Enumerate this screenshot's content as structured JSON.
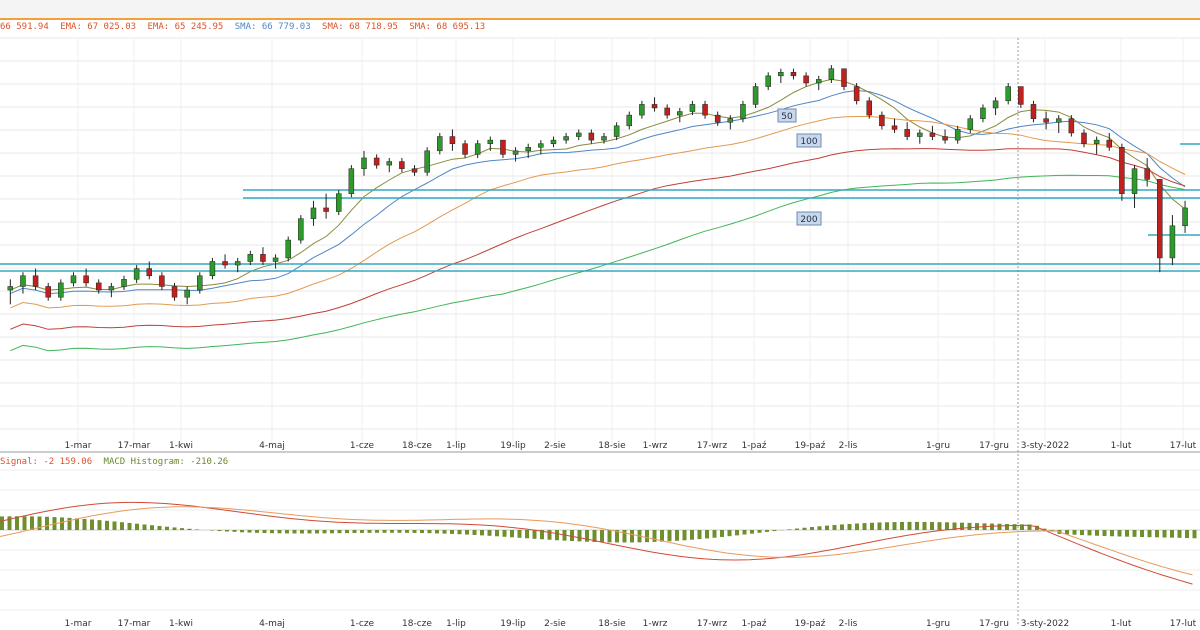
{
  "chart_data": [
    {
      "type": "candlestick",
      "title": "",
      "ylabel": "",
      "xlabel": "",
      "indicators_text": [
        {
          "id": "ema1",
          "text": "66 591.94",
          "color": "#d9532c"
        },
        {
          "id": "ema2",
          "text": "EMA: 67 025.03",
          "color": "#d9532c"
        },
        {
          "id": "ema3",
          "text": "EMA: 65 245.95",
          "color": "#d9532c"
        },
        {
          "id": "sma1",
          "text": "SMA: 66 779.03",
          "color": "#4f86c6"
        },
        {
          "id": "sma2",
          "text": "SMA: 68 718.95",
          "color": "#d9532c"
        },
        {
          "id": "sma3",
          "text": "SMA: 68 695.13",
          "color": "#d9532c"
        }
      ],
      "x_tick_labels": [
        "1-mar",
        "17-mar",
        "1-kwi",
        "4-maj",
        "1-cze",
        "18-cze",
        "1-lip",
        "19-lip",
        "2-sie",
        "18-sie",
        "1-wrz",
        "17-wrz",
        "1-paź",
        "19-paź",
        "2-lis",
        "1-gru",
        "17-gru",
        "3-sty-2022",
        "1-lut",
        "17-lut"
      ],
      "ma_labels": [
        "50",
        "100",
        "200"
      ],
      "grid": true,
      "horizontal_levels_note": "cyan support/resistance lines",
      "colors": {
        "up": "#2e9a2e",
        "down": "#c0201e",
        "line50": "#4f86c6",
        "line100": "#e29a50",
        "line200": "#3fb557",
        "lineRed": "#c0403a",
        "lineOlive": "#8a8a3c",
        "hline": "#36a7c0"
      },
      "candles_ohlc_relative": [
        [
          0.35,
          0.38,
          0.31,
          0.36
        ],
        [
          0.36,
          0.4,
          0.34,
          0.39
        ],
        [
          0.39,
          0.41,
          0.35,
          0.36
        ],
        [
          0.36,
          0.37,
          0.32,
          0.33
        ],
        [
          0.33,
          0.38,
          0.32,
          0.37
        ],
        [
          0.37,
          0.4,
          0.36,
          0.39
        ],
        [
          0.39,
          0.41,
          0.36,
          0.37
        ],
        [
          0.37,
          0.38,
          0.34,
          0.35
        ],
        [
          0.35,
          0.37,
          0.33,
          0.36
        ],
        [
          0.36,
          0.39,
          0.35,
          0.38
        ],
        [
          0.38,
          0.42,
          0.37,
          0.41
        ],
        [
          0.41,
          0.43,
          0.38,
          0.39
        ],
        [
          0.39,
          0.4,
          0.35,
          0.36
        ],
        [
          0.36,
          0.37,
          0.32,
          0.33
        ],
        [
          0.33,
          0.36,
          0.31,
          0.35
        ],
        [
          0.35,
          0.4,
          0.34,
          0.39
        ],
        [
          0.39,
          0.44,
          0.38,
          0.43
        ],
        [
          0.43,
          0.45,
          0.41,
          0.42
        ],
        [
          0.42,
          0.44,
          0.4,
          0.43
        ],
        [
          0.43,
          0.46,
          0.42,
          0.45
        ],
        [
          0.45,
          0.47,
          0.42,
          0.43
        ],
        [
          0.43,
          0.45,
          0.41,
          0.44
        ],
        [
          0.44,
          0.5,
          0.43,
          0.49
        ],
        [
          0.49,
          0.56,
          0.48,
          0.55
        ],
        [
          0.55,
          0.6,
          0.53,
          0.58
        ],
        [
          0.58,
          0.62,
          0.55,
          0.57
        ],
        [
          0.57,
          0.63,
          0.56,
          0.62
        ],
        [
          0.62,
          0.7,
          0.61,
          0.69
        ],
        [
          0.69,
          0.74,
          0.67,
          0.72
        ],
        [
          0.72,
          0.73,
          0.69,
          0.7
        ],
        [
          0.7,
          0.72,
          0.68,
          0.71
        ],
        [
          0.71,
          0.72,
          0.68,
          0.69
        ],
        [
          0.69,
          0.7,
          0.67,
          0.68
        ],
        [
          0.68,
          0.75,
          0.67,
          0.74
        ],
        [
          0.74,
          0.79,
          0.73,
          0.78
        ],
        [
          0.78,
          0.8,
          0.74,
          0.76
        ],
        [
          0.76,
          0.77,
          0.72,
          0.73
        ],
        [
          0.73,
          0.77,
          0.72,
          0.76
        ],
        [
          0.76,
          0.78,
          0.74,
          0.77
        ],
        [
          0.77,
          0.76,
          0.72,
          0.73
        ],
        [
          0.73,
          0.75,
          0.71,
          0.74
        ],
        [
          0.74,
          0.76,
          0.72,
          0.75
        ],
        [
          0.75,
          0.77,
          0.73,
          0.76
        ],
        [
          0.76,
          0.78,
          0.75,
          0.77
        ],
        [
          0.77,
          0.79,
          0.76,
          0.78
        ],
        [
          0.78,
          0.8,
          0.77,
          0.79
        ],
        [
          0.79,
          0.8,
          0.76,
          0.77
        ],
        [
          0.77,
          0.79,
          0.76,
          0.78
        ],
        [
          0.78,
          0.82,
          0.77,
          0.81
        ],
        [
          0.81,
          0.85,
          0.8,
          0.84
        ],
        [
          0.84,
          0.88,
          0.83,
          0.87
        ],
        [
          0.87,
          0.89,
          0.85,
          0.86
        ],
        [
          0.86,
          0.87,
          0.83,
          0.84
        ],
        [
          0.84,
          0.86,
          0.82,
          0.85
        ],
        [
          0.85,
          0.88,
          0.84,
          0.87
        ],
        [
          0.87,
          0.88,
          0.83,
          0.84
        ],
        [
          0.84,
          0.85,
          0.81,
          0.82
        ],
        [
          0.82,
          0.84,
          0.8,
          0.83
        ],
        [
          0.83,
          0.88,
          0.82,
          0.87
        ],
        [
          0.87,
          0.93,
          0.86,
          0.92
        ],
        [
          0.92,
          0.96,
          0.91,
          0.95
        ],
        [
          0.95,
          0.97,
          0.93,
          0.96
        ],
        [
          0.96,
          0.97,
          0.94,
          0.95
        ],
        [
          0.95,
          0.96,
          0.92,
          0.93
        ],
        [
          0.93,
          0.95,
          0.91,
          0.94
        ],
        [
          0.94,
          0.98,
          0.93,
          0.97
        ],
        [
          0.97,
          0.96,
          0.91,
          0.92
        ],
        [
          0.92,
          0.93,
          0.87,
          0.88
        ],
        [
          0.88,
          0.89,
          0.83,
          0.84
        ],
        [
          0.84,
          0.85,
          0.8,
          0.81
        ],
        [
          0.81,
          0.83,
          0.79,
          0.8
        ],
        [
          0.8,
          0.82,
          0.77,
          0.78
        ],
        [
          0.78,
          0.8,
          0.76,
          0.79
        ],
        [
          0.79,
          0.81,
          0.77,
          0.78
        ],
        [
          0.78,
          0.8,
          0.76,
          0.77
        ],
        [
          0.77,
          0.81,
          0.76,
          0.8
        ],
        [
          0.8,
          0.84,
          0.79,
          0.83
        ],
        [
          0.83,
          0.87,
          0.82,
          0.86
        ],
        [
          0.86,
          0.89,
          0.84,
          0.88
        ],
        [
          0.88,
          0.93,
          0.87,
          0.92
        ],
        [
          0.92,
          0.9,
          0.86,
          0.87
        ],
        [
          0.87,
          0.88,
          0.82,
          0.83
        ],
        [
          0.83,
          0.85,
          0.8,
          0.82
        ],
        [
          0.82,
          0.84,
          0.79,
          0.83
        ],
        [
          0.83,
          0.84,
          0.78,
          0.79
        ],
        [
          0.79,
          0.8,
          0.75,
          0.76
        ],
        [
          0.76,
          0.78,
          0.73,
          0.77
        ],
        [
          0.77,
          0.79,
          0.74,
          0.75
        ],
        [
          0.75,
          0.76,
          0.6,
          0.62
        ],
        [
          0.62,
          0.7,
          0.58,
          0.69
        ],
        [
          0.69,
          0.72,
          0.64,
          0.66
        ],
        [
          0.66,
          0.6,
          0.4,
          0.44
        ],
        [
          0.44,
          0.56,
          0.42,
          0.53
        ],
        [
          0.53,
          0.6,
          0.51,
          0.58
        ]
      ]
    },
    {
      "type": "line",
      "title": "",
      "indicators_text": [
        {
          "id": "signal",
          "text": "Signal: -2 159.06",
          "color": "#d9532c"
        },
        {
          "id": "hist",
          "text": "MACD Histogram: -210.26",
          "color": "#6b8a2c"
        }
      ],
      "x_tick_labels": [
        "1-mar",
        "17-mar",
        "1-kwi",
        "4-maj",
        "1-cze",
        "18-cze",
        "1-lip",
        "19-lip",
        "2-sie",
        "18-sie",
        "1-wrz",
        "17-wrz",
        "1-paź",
        "19-paź",
        "2-lis",
        "1-gru",
        "17-gru",
        "3-sty-2022",
        "1-lut",
        "17-lut"
      ],
      "colors": {
        "macd": "#d14a38",
        "signal": "#e99a5c",
        "hist": "#6f8f2f"
      }
    }
  ]
}
